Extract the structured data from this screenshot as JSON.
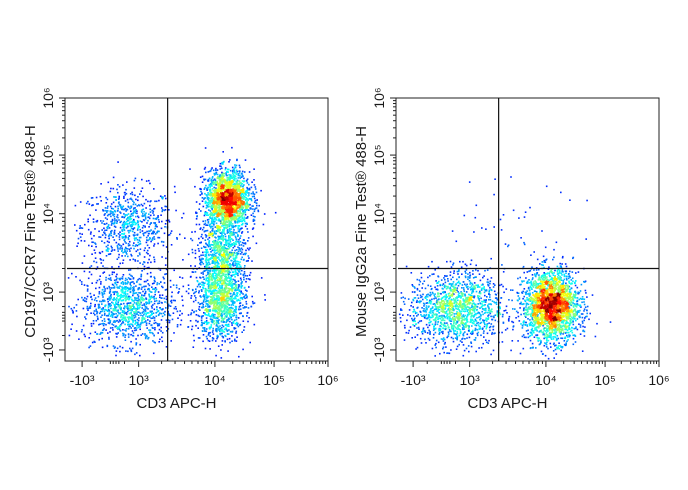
{
  "chart_data": [
    {
      "type": "scatter",
      "subtype": "flow-cytometry-density-dot-plot",
      "xlabel": "CD3 APC-H",
      "ylabel": "CD197/CCR7 Fine Test® 488-H",
      "x_scale": "biexponential",
      "y_scale": "biexponential",
      "xlim": [
        -1500,
        1000000
      ],
      "ylim": [
        -1500,
        1000000
      ],
      "x_ticks": [
        {
          "value": -1000,
          "label": "-10³"
        },
        {
          "value": 1000,
          "label": "10³"
        },
        {
          "value": 10000,
          "label": "10⁴"
        },
        {
          "value": 100000,
          "label": "10⁵"
        },
        {
          "value": 1000000,
          "label": "10⁶"
        }
      ],
      "y_ticks": [
        {
          "value": -1000,
          "label": "-10³"
        },
        {
          "value": 1000,
          "label": "10³"
        },
        {
          "value": 10000,
          "label": "10⁴"
        },
        {
          "value": 100000,
          "label": "10⁵"
        },
        {
          "value": 1000000,
          "label": "10⁶"
        }
      ],
      "quadrant_gate": {
        "x": 2400,
        "y": 2000
      },
      "populations": [
        {
          "x": 600,
          "y": 7000,
          "sd_x_decades": 0.35,
          "sd_y_decades": 0.3,
          "events": 700
        },
        {
          "x": 600,
          "y": 500,
          "sd_x_decades": 0.35,
          "sd_y_decades": 0.28,
          "events": 1100
        },
        {
          "x": 16000,
          "y": 18000,
          "sd_x_decades": 0.17,
          "sd_y_decades": 0.22,
          "events": 1900
        },
        {
          "x": 13000,
          "y": 3000,
          "sd_x_decades": 0.19,
          "sd_y_decades": 0.3,
          "events": 900
        },
        {
          "x": 12000,
          "y": 700,
          "sd_x_decades": 0.19,
          "sd_y_decades": 0.3,
          "events": 1100
        }
      ],
      "grid": false,
      "colormap": "jet density"
    },
    {
      "type": "scatter",
      "subtype": "flow-cytometry-density-dot-plot",
      "xlabel": "CD3 APC-H",
      "ylabel": "Mouse IgG2a Fine Test® 488-H",
      "x_scale": "biexponential",
      "y_scale": "biexponential",
      "xlim": [
        -1500,
        1000000
      ],
      "ylim": [
        -1500,
        1000000
      ],
      "x_ticks": [
        {
          "value": -1000,
          "label": "-10³"
        },
        {
          "value": 1000,
          "label": "10³"
        },
        {
          "value": 10000,
          "label": "10⁴"
        },
        {
          "value": 100000,
          "label": "10⁵"
        },
        {
          "value": 1000000,
          "label": "10⁶"
        }
      ],
      "y_ticks": [
        {
          "value": -1000,
          "label": "-10³"
        },
        {
          "value": 1000,
          "label": "10³"
        },
        {
          "value": 10000,
          "label": "10⁴"
        },
        {
          "value": 100000,
          "label": "10⁵"
        },
        {
          "value": 1000000,
          "label": "10⁶"
        }
      ],
      "quadrant_gate": {
        "x": 2400,
        "y": 2000
      },
      "populations": [
        {
          "x": 500,
          "y": 450,
          "sd_x_decades": 0.36,
          "sd_y_decades": 0.28,
          "events": 1400
        },
        {
          "x": 12000,
          "y": 550,
          "sd_x_decades": 0.21,
          "sd_y_decades": 0.27,
          "events": 2300
        },
        {
          "x": 3000,
          "y": 6000,
          "sd_x_decades": 0.6,
          "sd_y_decades": 0.4,
          "events": 40
        }
      ],
      "grid": false,
      "colormap": "jet density"
    }
  ]
}
